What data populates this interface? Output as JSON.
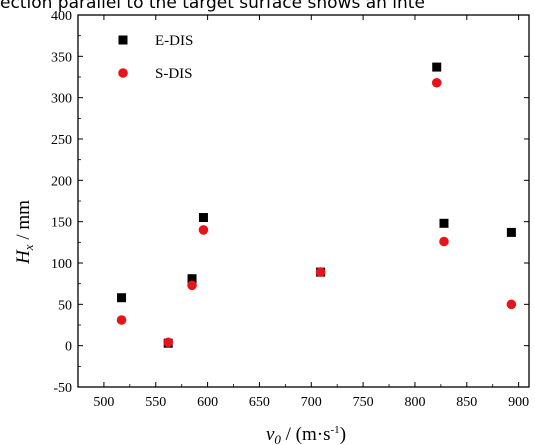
{
  "caption": "ection parallel to the target surface shows an inte",
  "chart_data": {
    "type": "scatter",
    "title": "",
    "xlabel": {
      "main": "v",
      "sub": "0",
      "unit_open": " / (m·s",
      "unit_exp": "-1",
      "unit_close": ")"
    },
    "ylabel": {
      "main": "H",
      "sub": "x",
      "unit": " / mm"
    },
    "xlim": [
      475,
      910
    ],
    "ylim": [
      -50,
      400
    ],
    "xticks": [
      500,
      550,
      600,
      650,
      700,
      750,
      800,
      850,
      900
    ],
    "yticks": [
      -50,
      0,
      50,
      100,
      150,
      200,
      250,
      300,
      350,
      400
    ],
    "grid": false,
    "legend_position": "top-left",
    "series": [
      {
        "name": "E-DIS",
        "marker": "square",
        "color": "#000000",
        "points": [
          [
            517,
            58
          ],
          [
            562,
            3
          ],
          [
            585,
            81
          ],
          [
            596,
            155
          ],
          [
            709,
            89
          ],
          [
            821,
            337
          ],
          [
            828,
            148
          ],
          [
            893,
            137
          ]
        ]
      },
      {
        "name": "S-DIS",
        "marker": "circle",
        "color": "#e8141c",
        "points": [
          [
            517,
            31
          ],
          [
            562,
            4
          ],
          [
            585,
            73
          ],
          [
            596,
            140
          ],
          [
            709,
            89
          ],
          [
            821,
            318
          ],
          [
            828,
            126
          ],
          [
            893,
            50
          ]
        ]
      }
    ]
  }
}
